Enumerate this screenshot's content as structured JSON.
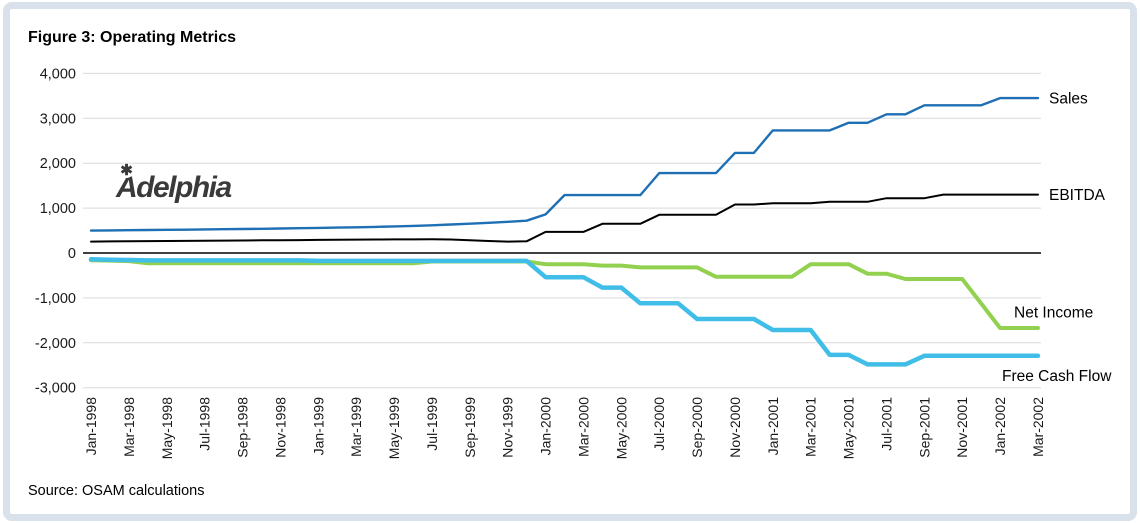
{
  "source_note": "Source: OSAM calculations",
  "watermark": {
    "text": "Adelphia"
  },
  "colors": {
    "frame_border": "#d9e1ea",
    "gridline": "#d9d9d9",
    "zero_axis": "#000000",
    "tick_text": "#1a1a1a",
    "sales": "#1f6fb5",
    "ebitda": "#000000",
    "net_income": "#92d050",
    "free_cash_flow": "#41bee8"
  },
  "chart_data": {
    "type": "line",
    "title": "Figure 3: Operating Metrics",
    "xlabel": "",
    "ylabel": "",
    "grid": true,
    "x_axis": {
      "unit": "month",
      "start": "Jan-1998",
      "end": "Mar-2002",
      "points": 51,
      "tick_labels": [
        "Jan-1998",
        "Mar-1998",
        "May-1998",
        "Jul-1998",
        "Sep-1998",
        "Nov-1998",
        "Jan-1999",
        "Mar-1999",
        "May-1999",
        "Jul-1999",
        "Sep-1999",
        "Nov-1999",
        "Jan-2000",
        "Mar-2000",
        "May-2000",
        "Jul-2000",
        "Sep-2000",
        "Nov-2000",
        "Jan-2001",
        "Mar-2001",
        "May-2001",
        "Jul-2001",
        "Sep-2001",
        "Nov-2001",
        "Jan-2002",
        "Mar-2002"
      ]
    },
    "y_axis": {
      "min": -3000,
      "max": 4000,
      "tick_values": [
        4000,
        3000,
        2000,
        1000,
        0,
        -1000,
        -2000,
        -3000
      ],
      "tick_labels": [
        "4,000",
        "3,000",
        "2,000",
        "1,000",
        "0",
        "-1,000",
        "-2,000",
        "-3,000"
      ]
    },
    "legend_position": "end-of-line-right",
    "series": [
      {
        "name": "Sales",
        "color": "#1f6fb5",
        "width": 2.4,
        "values": [
          500,
          504,
          508,
          512,
          516,
          520,
          525,
          530,
          535,
          540,
          546,
          552,
          558,
          565,
          573,
          582,
          592,
          604,
          618,
          634,
          652,
          672,
          695,
          720,
          860,
          1290,
          1290,
          1290,
          1290,
          1290,
          1780,
          1780,
          1780,
          1780,
          2230,
          2230,
          2730,
          2730,
          2730,
          2730,
          2900,
          2900,
          3090,
          3090,
          3290,
          3290,
          3290,
          3290,
          3450,
          3450,
          3450
        ]
      },
      {
        "name": "EBITDA",
        "color": "#000000",
        "width": 2,
        "values": [
          255,
          258,
          261,
          264,
          267,
          270,
          273,
          276,
          279,
          282,
          285,
          288,
          292,
          295,
          298,
          300,
          302,
          304,
          306,
          300,
          285,
          268,
          255,
          260,
          470,
          470,
          470,
          650,
          650,
          650,
          850,
          850,
          850,
          850,
          1080,
          1080,
          1110,
          1110,
          1110,
          1140,
          1140,
          1140,
          1220,
          1220,
          1220,
          1300,
          1300,
          1300,
          1300,
          1300,
          1300
        ]
      },
      {
        "name": "Net Income",
        "color": "#92d050",
        "width": 4,
        "values": [
          -160,
          -170,
          -180,
          -230,
          -230,
          -230,
          -230,
          -230,
          -230,
          -230,
          -230,
          -230,
          -230,
          -230,
          -230,
          -230,
          -230,
          -230,
          -190,
          -190,
          -190,
          -190,
          -190,
          -190,
          -250,
          -250,
          -250,
          -280,
          -280,
          -320,
          -320,
          -320,
          -320,
          -530,
          -530,
          -530,
          -530,
          -530,
          -250,
          -250,
          -250,
          -460,
          -460,
          -580,
          -580,
          -580,
          -580,
          -1125,
          -1670,
          -1670,
          -1670
        ]
      },
      {
        "name": "Free Cash Flow",
        "color": "#41bee8",
        "width": 4.5,
        "values": [
          -140,
          -150,
          -155,
          -165,
          -165,
          -165,
          -165,
          -165,
          -165,
          -165,
          -165,
          -165,
          -175,
          -175,
          -175,
          -175,
          -175,
          -175,
          -175,
          -175,
          -175,
          -175,
          -175,
          -175,
          -540,
          -540,
          -540,
          -770,
          -770,
          -1120,
          -1120,
          -1120,
          -1470,
          -1470,
          -1470,
          -1470,
          -1715,
          -1715,
          -1715,
          -2270,
          -2270,
          -2480,
          -2480,
          -2480,
          -2290,
          -2290,
          -2290,
          -2290,
          -2290,
          -2290,
          -2290
        ]
      }
    ]
  }
}
